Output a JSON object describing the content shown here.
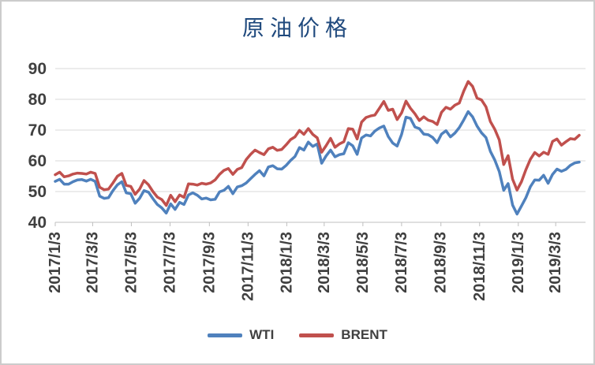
{
  "chart_data": {
    "type": "line",
    "title": "原油价格",
    "ylim": [
      40,
      90
    ],
    "y_ticks": [
      40,
      50,
      60,
      70,
      80,
      90
    ],
    "x_tick_labels": [
      "2017/1/3",
      "2017/3/3",
      "2017/5/3",
      "2017/7/3",
      "2017/9/3",
      "2017/11/3",
      "2018/1/3",
      "2018/3/3",
      "2018/5/3",
      "2018/7/3",
      "2018/9/3",
      "2018/11/3",
      "2019/1/3",
      "2019/3/3"
    ],
    "x_tick_days": [
      0,
      59,
      120,
      181,
      243,
      304,
      365,
      424,
      485,
      546,
      608,
      669,
      730,
      789
    ],
    "x_total_days": 836,
    "sample_interval_days": 7,
    "grid": true,
    "legend_position": "bottom",
    "colors": {
      "title": "#1F497D",
      "tick_label": "#404040",
      "grid": "#D9D9D9",
      "axis": "#BFBFBF",
      "background": "#FFFFFF",
      "border": "#CCCCCC"
    },
    "series": [
      {
        "name": "WTI",
        "color": "#4F81BD",
        "values": [
          53.3,
          54.0,
          52.4,
          52.4,
          53.2,
          53.8,
          53.9,
          53.4,
          54.0,
          53.3,
          48.5,
          47.8,
          48.0,
          50.3,
          52.2,
          53.2,
          49.6,
          49.3,
          46.2,
          47.8,
          50.3,
          49.8,
          47.7,
          45.8,
          44.7,
          43.0,
          46.0,
          44.2,
          46.5,
          45.8,
          48.9,
          49.6,
          48.8,
          47.6,
          47.9,
          47.3,
          47.5,
          49.9,
          50.4,
          51.7,
          49.3,
          51.5,
          51.9,
          52.8,
          54.2,
          55.6,
          56.8,
          55.1,
          58.0,
          58.4,
          57.4,
          57.3,
          58.5,
          60.1,
          61.4,
          64.3,
          63.5,
          66.1,
          64.7,
          65.5,
          59.2,
          61.6,
          63.5,
          61.3,
          62.0,
          62.3,
          65.9,
          64.9,
          62.1,
          67.4,
          68.4,
          68.1,
          69.7,
          70.7,
          71.3,
          67.9,
          65.8,
          64.8,
          68.6,
          74.2,
          73.8,
          71.0,
          70.5,
          68.7,
          68.5,
          67.6,
          65.9,
          68.7,
          69.8,
          67.8,
          69.0,
          70.8,
          73.3,
          76.0,
          74.3,
          71.3,
          69.1,
          67.6,
          63.1,
          60.2,
          56.5,
          50.4,
          52.6,
          45.6,
          42.7,
          45.3,
          48.0,
          51.6,
          53.8,
          53.7,
          55.3,
          52.7,
          55.6,
          57.3,
          56.6,
          57.2,
          58.5,
          59.3,
          59.6
        ]
      },
      {
        "name": "BRENT",
        "color": "#C0504D",
        "values": [
          55.5,
          56.3,
          54.8,
          55.1,
          55.7,
          56.0,
          55.9,
          55.7,
          56.3,
          55.9,
          51.4,
          50.6,
          50.8,
          52.8,
          55.0,
          55.9,
          52.0,
          51.7,
          49.1,
          50.8,
          53.6,
          52.2,
          50.0,
          48.2,
          47.4,
          45.5,
          48.8,
          46.7,
          48.9,
          48.1,
          52.5,
          52.4,
          52.1,
          52.7,
          52.4,
          52.8,
          53.8,
          55.6,
          56.9,
          57.5,
          55.6,
          57.2,
          57.8,
          60.4,
          62.1,
          63.5,
          62.7,
          62.0,
          63.9,
          64.4,
          63.4,
          63.7,
          65.2,
          66.9,
          67.8,
          69.9,
          68.6,
          70.5,
          68.6,
          67.5,
          62.8,
          64.9,
          67.3,
          64.4,
          65.5,
          66.2,
          70.5,
          70.3,
          67.1,
          72.6,
          74.1,
          74.6,
          74.9,
          77.1,
          79.3,
          76.4,
          76.8,
          73.4,
          75.6,
          79.4,
          77.1,
          75.3,
          73.1,
          74.3,
          73.2,
          72.8,
          71.8,
          75.8,
          77.4,
          76.8,
          78.1,
          78.8,
          82.7,
          85.8,
          84.2,
          80.4,
          79.8,
          77.6,
          72.8,
          70.2,
          66.8,
          58.8,
          61.7,
          54.0,
          50.5,
          53.2,
          57.1,
          60.5,
          62.7,
          61.6,
          62.8,
          62.1,
          66.3,
          67.1,
          65.1,
          66.2,
          67.2,
          67.0,
          68.3
        ]
      }
    ]
  }
}
